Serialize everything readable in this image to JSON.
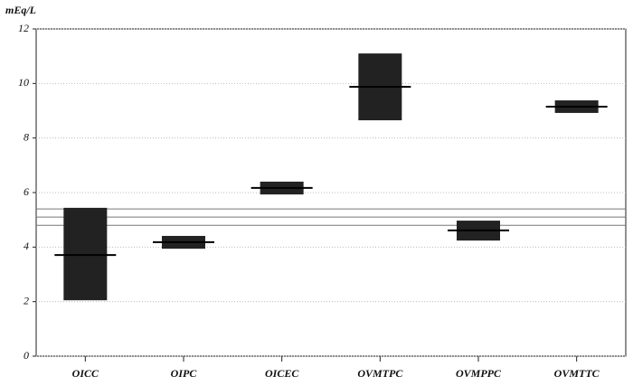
{
  "chart_data": {
    "type": "range",
    "y_label": "mEq/L",
    "categories": [
      "OICC",
      "OIPC",
      "OICEC",
      "OVMTPC",
      "OVMPPC",
      "OVMTTC"
    ],
    "series": [
      {
        "name": "low",
        "values": [
          2.05,
          3.94,
          5.93,
          8.65,
          4.24,
          8.92
        ]
      },
      {
        "name": "high",
        "values": [
          5.44,
          4.41,
          6.4,
          11.1,
          4.97,
          9.38
        ]
      },
      {
        "name": "median",
        "values": [
          3.71,
          4.18,
          6.17,
          9.88,
          4.61,
          9.15
        ]
      }
    ],
    "color": "#222222",
    "reference_lines": [
      5.4,
      5.1,
      4.8
    ],
    "ylim": [
      0,
      12
    ],
    "yticks": [
      0,
      2,
      4,
      6,
      8,
      10,
      12
    ],
    "grid": true
  }
}
